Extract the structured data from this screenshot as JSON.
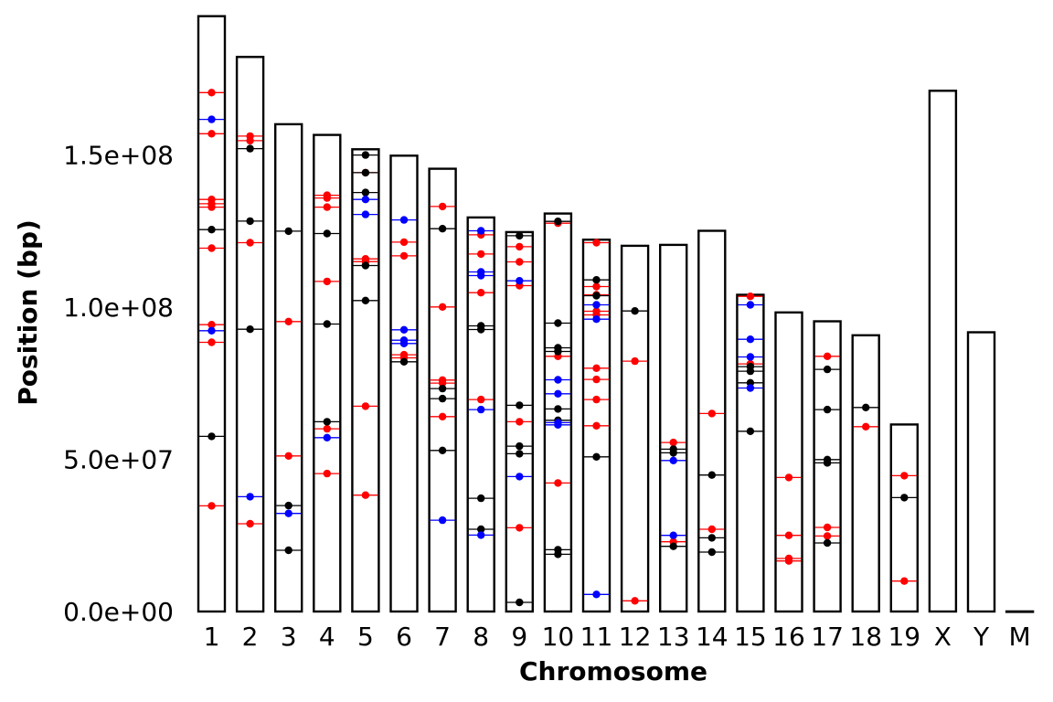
{
  "chart_data": {
    "type": "chromosome-ideogram",
    "xlabel": "Chromosome",
    "ylabel": "Position (bp)",
    "ylim": [
      0,
      196000000
    ],
    "yticks": [
      0,
      50000000,
      100000000,
      150000000
    ],
    "ytick_labels": [
      "0.0e+00",
      "5.0e+07",
      "1.0e+08",
      "1.5e+08"
    ],
    "grid": false,
    "legend": "none",
    "colors": {
      "black": "#000000",
      "red": "#ff0000",
      "blue": "#0000ff"
    },
    "chromosomes": [
      {
        "name": "1",
        "length": 195500000
      },
      {
        "name": "2",
        "length": 182100000
      },
      {
        "name": "3",
        "length": 160000000
      },
      {
        "name": "4",
        "length": 156500000
      },
      {
        "name": "5",
        "length": 151800000
      },
      {
        "name": "6",
        "length": 149700000
      },
      {
        "name": "7",
        "length": 145400000
      },
      {
        "name": "8",
        "length": 129400000
      },
      {
        "name": "9",
        "length": 124600000
      },
      {
        "name": "10",
        "length": 130700000
      },
      {
        "name": "11",
        "length": 122100000
      },
      {
        "name": "12",
        "length": 120100000
      },
      {
        "name": "13",
        "length": 120400000
      },
      {
        "name": "14",
        "length": 125000000
      },
      {
        "name": "15",
        "length": 104000000
      },
      {
        "name": "16",
        "length": 98200000
      },
      {
        "name": "17",
        "length": 95300000
      },
      {
        "name": "18",
        "length": 90700000
      },
      {
        "name": "19",
        "length": 61400000
      },
      {
        "name": "X",
        "length": 171000000
      },
      {
        "name": "Y",
        "length": 91700000
      },
      {
        "name": "M",
        "length": 16300
      }
    ],
    "series": [
      {
        "color": "red",
        "points": [
          [
            "1",
            170400000
          ],
          [
            "1",
            156900000
          ],
          [
            "1",
            135300000
          ],
          [
            "1",
            133900000
          ],
          [
            "1",
            132800000
          ],
          [
            "1",
            119300000
          ],
          [
            "1",
            94200000
          ],
          [
            "1",
            88400000
          ],
          [
            "1",
            34700000
          ],
          [
            "2",
            156100000
          ],
          [
            "2",
            154600000
          ],
          [
            "2",
            121100000
          ],
          [
            "2",
            28800000
          ],
          [
            "3",
            95200000
          ],
          [
            "3",
            51100000
          ],
          [
            "4",
            136700000
          ],
          [
            "4",
            135800000
          ],
          [
            "4",
            132800000
          ],
          [
            "4",
            108400000
          ],
          [
            "4",
            60000000
          ],
          [
            "4",
            45300000
          ],
          [
            "5",
            144100000
          ],
          [
            "5",
            115800000
          ],
          [
            "5",
            114900000
          ],
          [
            "5",
            67400000
          ],
          [
            "5",
            38200000
          ],
          [
            "6",
            121300000
          ],
          [
            "6",
            116800000
          ],
          [
            "6",
            84300000
          ],
          [
            "6",
            83300000
          ],
          [
            "7",
            133000000
          ],
          [
            "7",
            100000000
          ],
          [
            "7",
            76000000
          ],
          [
            "7",
            75000000
          ],
          [
            "7",
            64000000
          ],
          [
            "8",
            123700000
          ],
          [
            "8",
            117400000
          ],
          [
            "8",
            104700000
          ],
          [
            "8",
            69600000
          ],
          [
            "9",
            119800000
          ],
          [
            "9",
            114800000
          ],
          [
            "9",
            107000000
          ],
          [
            "9",
            62300000
          ],
          [
            "9",
            27500000
          ],
          [
            "10",
            127500000
          ],
          [
            "10",
            83800000
          ],
          [
            "10",
            42200000
          ],
          [
            "11",
            121100000
          ],
          [
            "11",
            106700000
          ],
          [
            "11",
            104000000
          ],
          [
            "11",
            98600000
          ],
          [
            "11",
            97400000
          ],
          [
            "11",
            79900000
          ],
          [
            "11",
            76200000
          ],
          [
            "11",
            69600000
          ],
          [
            "11",
            61000000
          ],
          [
            "12",
            82200000
          ],
          [
            "12",
            3500000
          ],
          [
            "13",
            55500000
          ],
          [
            "13",
            22900000
          ],
          [
            "14",
            65000000
          ],
          [
            "14",
            27000000
          ],
          [
            "15",
            103500000
          ],
          [
            "15",
            81300000
          ],
          [
            "16",
            44000000
          ],
          [
            "16",
            25000000
          ],
          [
            "16",
            17400000
          ],
          [
            "16",
            16600000
          ],
          [
            "17",
            83800000
          ],
          [
            "17",
            27600000
          ],
          [
            "17",
            24800000
          ],
          [
            "18",
            60700000
          ],
          [
            "19",
            44600000
          ],
          [
            "19",
            10000000
          ]
        ]
      },
      {
        "color": "black",
        "points": [
          [
            "1",
            125400000
          ],
          [
            "1",
            57500000
          ],
          [
            "2",
            152000000
          ],
          [
            "2",
            128200000
          ],
          [
            "2",
            92700000
          ],
          [
            "3",
            124900000
          ],
          [
            "3",
            34800000
          ],
          [
            "3",
            20100000
          ],
          [
            "4",
            124100000
          ],
          [
            "4",
            94400000
          ],
          [
            "4",
            62300000
          ],
          [
            "5",
            149900000
          ],
          [
            "5",
            144100000
          ],
          [
            "5",
            137600000
          ],
          [
            "5",
            113600000
          ],
          [
            "5",
            102100000
          ],
          [
            "6",
            82000000
          ],
          [
            "7",
            125700000
          ],
          [
            "7",
            73200000
          ],
          [
            "7",
            69900000
          ],
          [
            "7",
            52900000
          ],
          [
            "8",
            93800000
          ],
          [
            "8",
            92600000
          ],
          [
            "8",
            37200000
          ],
          [
            "8",
            27000000
          ],
          [
            "9",
            123400000
          ],
          [
            "9",
            67700000
          ],
          [
            "9",
            54300000
          ],
          [
            "9",
            51800000
          ],
          [
            "9",
            3000000
          ],
          [
            "10",
            128100000
          ],
          [
            "10",
            94700000
          ],
          [
            "10",
            86600000
          ],
          [
            "10",
            85400000
          ],
          [
            "10",
            66500000
          ],
          [
            "10",
            62800000
          ],
          [
            "10",
            20300000
          ],
          [
            "10",
            18800000
          ],
          [
            "11",
            108900000
          ],
          [
            "11",
            103700000
          ],
          [
            "11",
            50800000
          ],
          [
            "12",
            98700000
          ],
          [
            "13",
            53300000
          ],
          [
            "13",
            52100000
          ],
          [
            "13",
            21400000
          ],
          [
            "14",
            44800000
          ],
          [
            "14",
            24200000
          ],
          [
            "14",
            19500000
          ],
          [
            "15",
            80400000
          ],
          [
            "15",
            78900000
          ],
          [
            "15",
            75100000
          ],
          [
            "15",
            59200000
          ],
          [
            "17",
            79500000
          ],
          [
            "17",
            66300000
          ],
          [
            "17",
            49900000
          ],
          [
            "17",
            48800000
          ],
          [
            "17",
            22500000
          ],
          [
            "18",
            67000000
          ],
          [
            "19",
            37400000
          ]
        ]
      },
      {
        "color": "blue",
        "points": [
          [
            "1",
            161600000
          ],
          [
            "1",
            92200000
          ],
          [
            "2",
            37700000
          ],
          [
            "3",
            32200000
          ],
          [
            "4",
            57100000
          ],
          [
            "5",
            135300000
          ],
          [
            "5",
            130400000
          ],
          [
            "6",
            128600000
          ],
          [
            "6",
            92500000
          ],
          [
            "6",
            89100000
          ],
          [
            "6",
            88000000
          ],
          [
            "7",
            30000000
          ],
          [
            "8",
            125000000
          ],
          [
            "8",
            111500000
          ],
          [
            "8",
            110300000
          ],
          [
            "8",
            66300000
          ],
          [
            "8",
            25100000
          ],
          [
            "9",
            108600000
          ],
          [
            "9",
            44300000
          ],
          [
            "10",
            76100000
          ],
          [
            "10",
            71500000
          ],
          [
            "10",
            62000000
          ],
          [
            "10",
            61300000
          ],
          [
            "11",
            100700000
          ],
          [
            "11",
            96000000
          ],
          [
            "11",
            5600000
          ],
          [
            "13",
            49600000
          ],
          [
            "13",
            25000000
          ],
          [
            "15",
            100700000
          ],
          [
            "15",
            89400000
          ],
          [
            "15",
            83600000
          ],
          [
            "15",
            73400000
          ]
        ]
      }
    ]
  }
}
